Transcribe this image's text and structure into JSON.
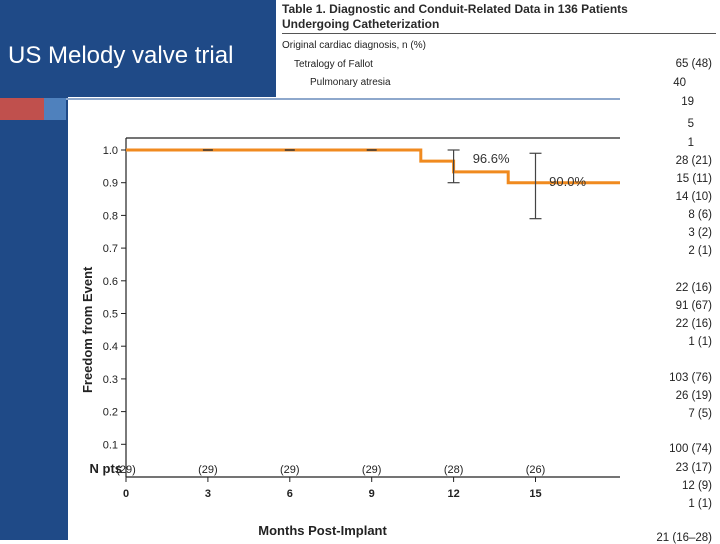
{
  "slide": {
    "title": "US Melody valve trial"
  },
  "table": {
    "title_line1": "Table 1.   Diagnostic and Conduit-Related Data in 136 Patients",
    "title_line2": "Undergoing Catheterization",
    "row_labels": [
      "Original cardiac diagnosis, n (%)",
      "Tetralogy of Fallot",
      "Pulmonary atresia"
    ],
    "values": [
      "65 (48)",
      "40",
      "19",
      "5",
      "1",
      "28 (21)",
      "15 (11)",
      "14 (10)",
      "8 (6)",
      "3 (2)",
      "2 (1)",
      "22 (16)",
      "91 (67)",
      "22 (16)",
      "1 (1)",
      "103 (76)",
      "26 (19)",
      "7 (5)",
      "100 (74)",
      "23 (17)",
      "12 (9)",
      "1 (1)",
      "21 (16–28)"
    ]
  },
  "chart_data": {
    "type": "line",
    "title": "",
    "xlabel": "Months Post-Implant",
    "ylabel": "Freedom from Event",
    "xlim": [
      0,
      18.8
    ],
    "ylim": [
      0,
      1.0
    ],
    "x_ticks": [
      "0",
      "3",
      "6",
      "9",
      "12",
      "15"
    ],
    "y_ticks": [
      "0.1",
      "0.2",
      "0.3",
      "0.4",
      "0.5",
      "0.6",
      "0.7",
      "0.8",
      "0.9",
      "1.0"
    ],
    "series": [
      {
        "color": "#f08a1f",
        "x": [
          0,
          10.8,
          10.8,
          12,
          12,
          14,
          14,
          18.8
        ],
        "y": [
          1.0,
          1.0,
          0.966,
          0.966,
          0.933,
          0.933,
          0.9,
          0.9
        ]
      }
    ],
    "error_bars": [
      {
        "x": 12,
        "low": 0.9,
        "high": 1.0
      },
      {
        "x": 15,
        "low": 0.79,
        "high": 0.99
      }
    ],
    "annotations": [
      {
        "x": 12.7,
        "y": 0.975,
        "text": "96.6%"
      },
      {
        "x": 15.5,
        "y": 0.905,
        "text": "90.0%"
      }
    ],
    "at_risk_label": "N pts",
    "at_risk_x": [
      0,
      3,
      6,
      9,
      12,
      15
    ],
    "at_risk": [
      "(29)",
      "(29)",
      "(29)",
      "(29)",
      "(28)",
      "(26)"
    ],
    "censor_marks_x": [
      3,
      6,
      9
    ]
  }
}
